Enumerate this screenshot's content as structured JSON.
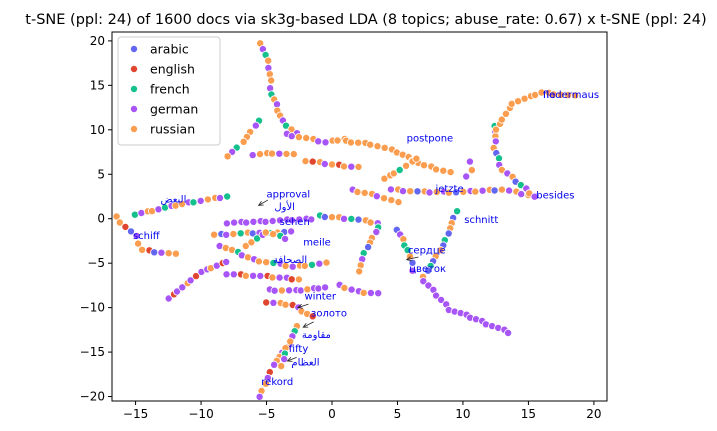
{
  "chart_data": {
    "type": "scatter",
    "title": "t-SNE (ppl: 24) of 1600 docs via sk3g-based LDA (8 topics; abuse_rate: 0.67) x t-SNE (ppl: 24)",
    "xlabel": "",
    "ylabel": "",
    "xlim": [
      -16.8,
      21.0
    ],
    "ylim": [
      -20.5,
      21.0
    ],
    "xticks": [
      -15,
      -10,
      -5,
      0,
      5,
      10,
      15,
      20
    ],
    "yticks": [
      -20,
      -15,
      -10,
      -5,
      0,
      5,
      10,
      15,
      20
    ],
    "grid": false,
    "legend_position": "top-left",
    "series": [
      {
        "name": "arabic",
        "color": "#6366f1"
      },
      {
        "name": "english",
        "color": "#e0452f"
      },
      {
        "name": "french",
        "color": "#14c08c"
      },
      {
        "name": "german",
        "color": "#a855f7"
      },
      {
        "name": "russian",
        "color": "#fb9d4f"
      }
    ],
    "curves": [
      {
        "pts": [
          [
            -5.4,
            19.8
          ],
          [
            -4.8,
            17
          ],
          [
            -4.6,
            14
          ],
          [
            -3.8,
            11
          ],
          [
            -2.7,
            9.6
          ]
        ],
        "mix": [
          4,
          3,
          2,
          4,
          3,
          4
        ]
      },
      {
        "pts": [
          [
            -5.6,
            11
          ],
          [
            -6.8,
            8.6
          ],
          [
            -8,
            7
          ]
        ],
        "mix": [
          3,
          4,
          4,
          2,
          4
        ]
      },
      {
        "pts": [
          [
            -6,
            7.2
          ],
          [
            -4.5,
            7.4
          ],
          [
            -3,
            7.2
          ]
        ],
        "mix": [
          4,
          4,
          3,
          4
        ]
      },
      {
        "pts": [
          [
            -3.5,
            9.5
          ],
          [
            -0.5,
            8.6
          ],
          [
            1,
            9
          ]
        ],
        "mix": [
          4,
          3,
          4,
          4,
          3
        ]
      },
      {
        "pts": [
          [
            -2,
            6.5
          ],
          [
            0,
            6.1
          ],
          [
            2,
            5.8
          ]
        ],
        "mix": [
          4,
          3,
          4,
          1
        ]
      },
      {
        "pts": [
          [
            1,
            8.7
          ],
          [
            3,
            8.4
          ],
          [
            5,
            7.5
          ],
          [
            7,
            6
          ],
          [
            9,
            5.2
          ]
        ],
        "mix": [
          4,
          4,
          3,
          2,
          4,
          4,
          3
        ]
      },
      {
        "pts": [
          [
            4.5,
            3.3
          ],
          [
            7,
            3
          ],
          [
            10,
            3
          ],
          [
            13,
            3.3
          ],
          [
            15.5,
            2.5
          ]
        ],
        "mix": [
          3,
          4,
          3,
          4,
          0,
          4
        ]
      },
      {
        "pts": [
          [
            12.5,
            10.5
          ],
          [
            12.4,
            8
          ],
          [
            13,
            5.5
          ],
          [
            15.5,
            2.5
          ]
        ],
        "mix": [
          3,
          4,
          0,
          2,
          3,
          4
        ]
      },
      {
        "pts": [
          [
            12.5,
            10
          ],
          [
            13.8,
            13
          ],
          [
            16,
            14.2
          ],
          [
            18.5,
            13.8
          ]
        ],
        "mix": [
          4,
          4,
          3,
          4,
          0,
          2,
          4
        ]
      },
      {
        "pts": [
          [
            -15,
            0.5
          ],
          [
            -11,
            1.8
          ],
          [
            -8,
            2.5
          ]
        ],
        "mix": [
          3,
          4,
          2,
          4,
          3
        ]
      },
      {
        "pts": [
          [
            -16.5,
            0.2
          ],
          [
            -15,
            -2
          ],
          [
            -14.5,
            -3.5
          ],
          [
            -12,
            -4
          ]
        ],
        "mix": [
          4,
          0,
          4,
          3,
          1
        ]
      },
      {
        "pts": [
          [
            -8,
            -0.5
          ],
          [
            -4,
            -0.2
          ],
          [
            -1.5,
            0
          ]
        ],
        "mix": [
          3,
          4,
          4,
          0,
          2,
          3,
          4
        ]
      },
      {
        "pts": [
          [
            -1,
            0.3
          ],
          [
            1.5,
            0
          ],
          [
            3.5,
            -0.5
          ]
        ],
        "mix": [
          4,
          2,
          4,
          0,
          3
        ]
      },
      {
        "pts": [
          [
            -9,
            -1.8
          ],
          [
            -6,
            -1.6
          ],
          [
            -3.2,
            -1.5
          ]
        ],
        "mix": [
          4,
          0,
          2,
          3,
          4
        ]
      },
      {
        "pts": [
          [
            -8.5,
            -3
          ],
          [
            -6,
            -4.6
          ],
          [
            -3,
            -5.4
          ],
          [
            -0.5,
            -5
          ]
        ],
        "mix": [
          3,
          4,
          4,
          2,
          3,
          4
        ]
      },
      {
        "pts": [
          [
            -12.5,
            -9
          ],
          [
            -10,
            -6
          ],
          [
            -8,
            -4.8
          ]
        ],
        "mix": [
          3,
          3,
          1,
          4,
          3
        ]
      },
      {
        "pts": [
          [
            -8,
            -6.2
          ],
          [
            -5,
            -6.5
          ],
          [
            -2.5,
            -6.8
          ]
        ],
        "mix": [
          3,
          4,
          1,
          3
        ]
      },
      {
        "pts": [
          [
            -4.8,
            -8
          ],
          [
            -2.8,
            -8.1
          ],
          [
            -0.5,
            -7.7
          ]
        ],
        "mix": [
          3,
          4,
          3,
          3
        ]
      },
      {
        "pts": [
          [
            -5,
            -9.4
          ],
          [
            -3,
            -9.7
          ],
          [
            -1.5,
            -11
          ]
        ],
        "mix": [
          4,
          3,
          1,
          4
        ]
      },
      {
        "pts": [
          [
            0.5,
            -7.5
          ],
          [
            2,
            -8.2
          ],
          [
            3.5,
            -8.4
          ]
        ],
        "mix": [
          3,
          4,
          3
        ]
      },
      {
        "pts": [
          [
            -3.2,
            -14
          ],
          [
            -4.5,
            -16.5
          ],
          [
            -5.5,
            -20
          ]
        ],
        "mix": [
          3,
          4,
          1,
          4,
          3
        ]
      },
      {
        "pts": [
          [
            -2.6,
            -12
          ],
          [
            -3.5,
            -14.5
          ],
          [
            -3.8,
            -16.5
          ]
        ],
        "mix": [
          4,
          3,
          2,
          4
        ]
      },
      {
        "pts": [
          [
            3.5,
            -1
          ],
          [
            2.5,
            -3.8
          ],
          [
            2,
            -6
          ]
        ],
        "mix": [
          4,
          2,
          4,
          3,
          0
        ]
      },
      {
        "pts": [
          [
            5,
            -1.2
          ],
          [
            5.8,
            -3.5
          ],
          [
            6.2,
            -5.8
          ]
        ],
        "mix": [
          2,
          2,
          4,
          0,
          3,
          4
        ]
      },
      {
        "pts": [
          [
            9.5,
            0.8
          ],
          [
            8.5,
            -3
          ],
          [
            7,
            -6.5
          ]
        ],
        "mix": [
          0,
          4,
          2,
          4,
          0
        ]
      },
      {
        "pts": [
          [
            7,
            -7
          ],
          [
            9,
            -10.2
          ],
          [
            11,
            -11.3
          ],
          [
            13.5,
            -12.8
          ]
        ],
        "mix": [
          3,
          4,
          0,
          2,
          0,
          3,
          4
        ]
      },
      {
        "pts": [
          [
            1.5,
            3.2
          ],
          [
            3.5,
            2.6
          ],
          [
            5,
            1.8
          ]
        ],
        "mix": [
          4,
          4,
          3,
          4
        ]
      },
      {
        "pts": [
          [
            4,
            4.5
          ],
          [
            5.2,
            5.5
          ],
          [
            6.5,
            6.8
          ]
        ],
        "mix": [
          4,
          4,
          2,
          4
        ]
      },
      {
        "pts": [
          [
            -6.5,
            -3
          ],
          [
            -5,
            -1.5
          ],
          [
            -3.5,
            -2.2
          ]
        ],
        "mix": [
          4,
          3,
          2,
          4
        ]
      },
      {
        "pts": [
          [
            10.5,
            6.4
          ],
          [
            10.6,
            5.4
          ],
          [
            10.3,
            4.8
          ]
        ],
        "mix": [
          3,
          4,
          3
        ]
      }
    ],
    "annotations": [
      {
        "text": "fledermaus",
        "x": 16.1,
        "y": 13.6
      },
      {
        "text": "flo",
        "x": 16.1,
        "y": 13.6
      },
      {
        "text": "postpone",
        "x": 5.7,
        "y": 8.7
      },
      {
        "text": "jetzte",
        "x": 7.9,
        "y": 3.0
      },
      {
        "text": "besides",
        "x": 15.6,
        "y": 2.3
      },
      {
        "text": "approval",
        "x": -5.0,
        "y": 2.4
      },
      {
        "text": "البعض",
        "x": -13.1,
        "y": 1.8
      },
      {
        "text": "الأول",
        "x": -4.4,
        "y": 1.0
      },
      {
        "text": "sehen",
        "x": -4.0,
        "y": -0.7
      },
      {
        "text": "schnitt",
        "x": 10.1,
        "y": -0.5
      },
      {
        "text": "schiff",
        "x": -15.2,
        "y": -2.3
      },
      {
        "text": "meile",
        "x": -2.2,
        "y": -3.0
      },
      {
        "text": "сердце",
        "x": 5.8,
        "y": -3.9
      },
      {
        "text": "الصحافة",
        "x": -4.5,
        "y": -5.0
      },
      {
        "text": "цветок",
        "x": 5.9,
        "y": -6.0
      },
      {
        "text": "winter",
        "x": -2.1,
        "y": -9.1
      },
      {
        "text": "золото",
        "x": -1.6,
        "y": -11.0
      },
      {
        "text": "مقاومة",
        "x": -2.3,
        "y": -13.4
      },
      {
        "text": "fifty",
        "x": -3.3,
        "y": -15.0
      },
      {
        "text": "العظام",
        "x": -3.1,
        "y": -16.5
      },
      {
        "text": "rekord",
        "x": -5.4,
        "y": -18.7
      }
    ],
    "arrows": [
      {
        "from": [
          -4.9,
          2.1
        ],
        "to": [
          -5.6,
          1.5
        ]
      },
      {
        "from": [
          -1.8,
          -9.6
        ],
        "to": [
          -2.6,
          -10.0
        ]
      },
      {
        "from": [
          -1.4,
          -11.6
        ],
        "to": [
          -2.2,
          -12.2
        ]
      },
      {
        "from": [
          6.6,
          -4.3
        ],
        "to": [
          5.7,
          -4.6
        ]
      },
      {
        "from": [
          -2.7,
          -15.6
        ],
        "to": [
          -3.4,
          -16.0
        ]
      }
    ]
  }
}
